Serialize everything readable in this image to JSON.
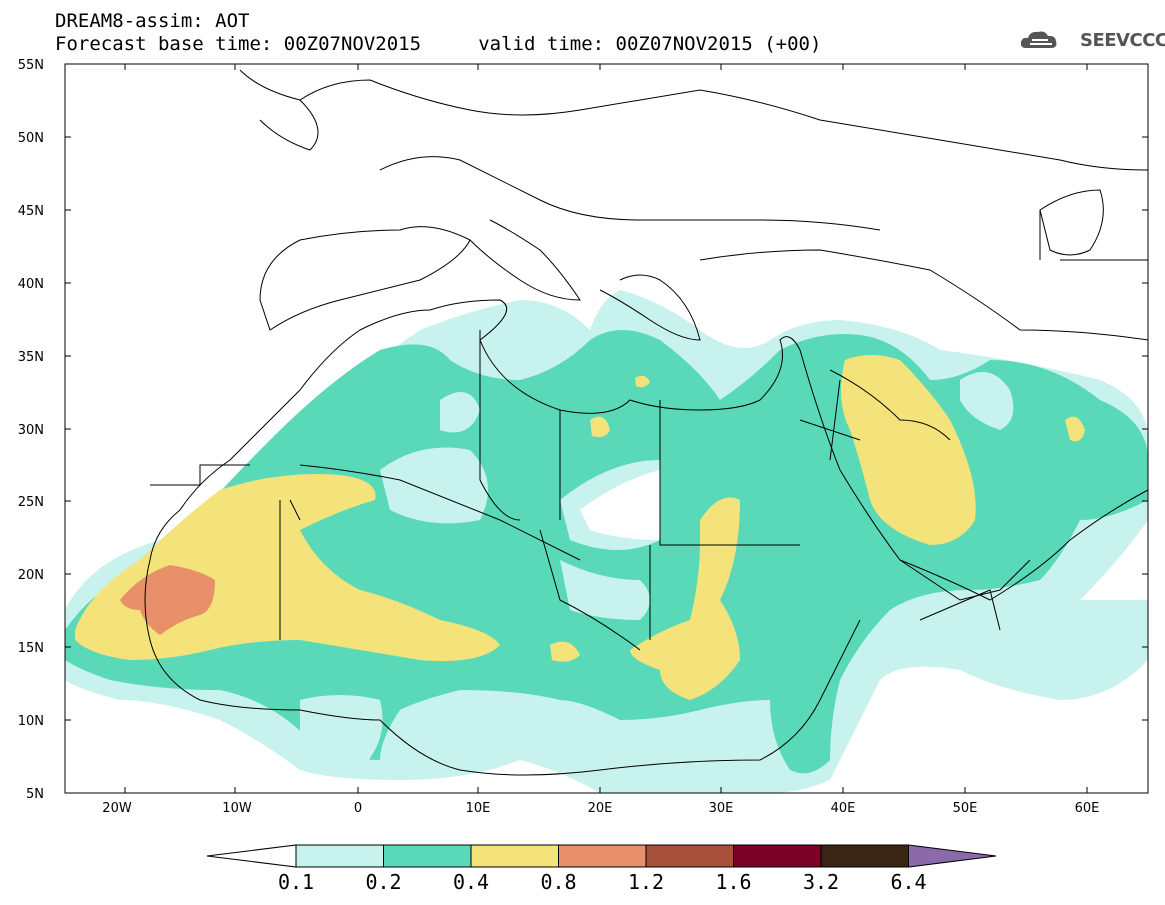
{
  "title": {
    "line1": "DREAM8-assim: AOT",
    "line2": "Forecast base time: 00Z07NOV2015     valid time: 00Z07NOV2015 (+00)"
  },
  "logo": {
    "text": "SEEVCCC",
    "icon": "cloud-icon"
  },
  "map": {
    "lon_range": [
      -25,
      65
    ],
    "lat_range": [
      5,
      55
    ],
    "lat_ticks": [
      "55N",
      "50N",
      "45N",
      "40N",
      "35N",
      "30N",
      "25N",
      "20N",
      "15N",
      "10N",
      "5N"
    ],
    "lon_ticks": [
      "20W",
      "10W",
      "0",
      "10E",
      "20E",
      "30E",
      "40E",
      "50E",
      "60E"
    ]
  },
  "colorbar": {
    "labels": [
      "0.1",
      "0.2",
      "0.4",
      "0.8",
      "1.2",
      "1.6",
      "3.2",
      "6.4"
    ],
    "colors": [
      "#ffffff",
      "#c8f2ee",
      "#5ad9b8",
      "#f3e37a",
      "#e8906a",
      "#a8503c",
      "#7a0026",
      "#3a2414",
      "#8a6aa8"
    ]
  }
}
